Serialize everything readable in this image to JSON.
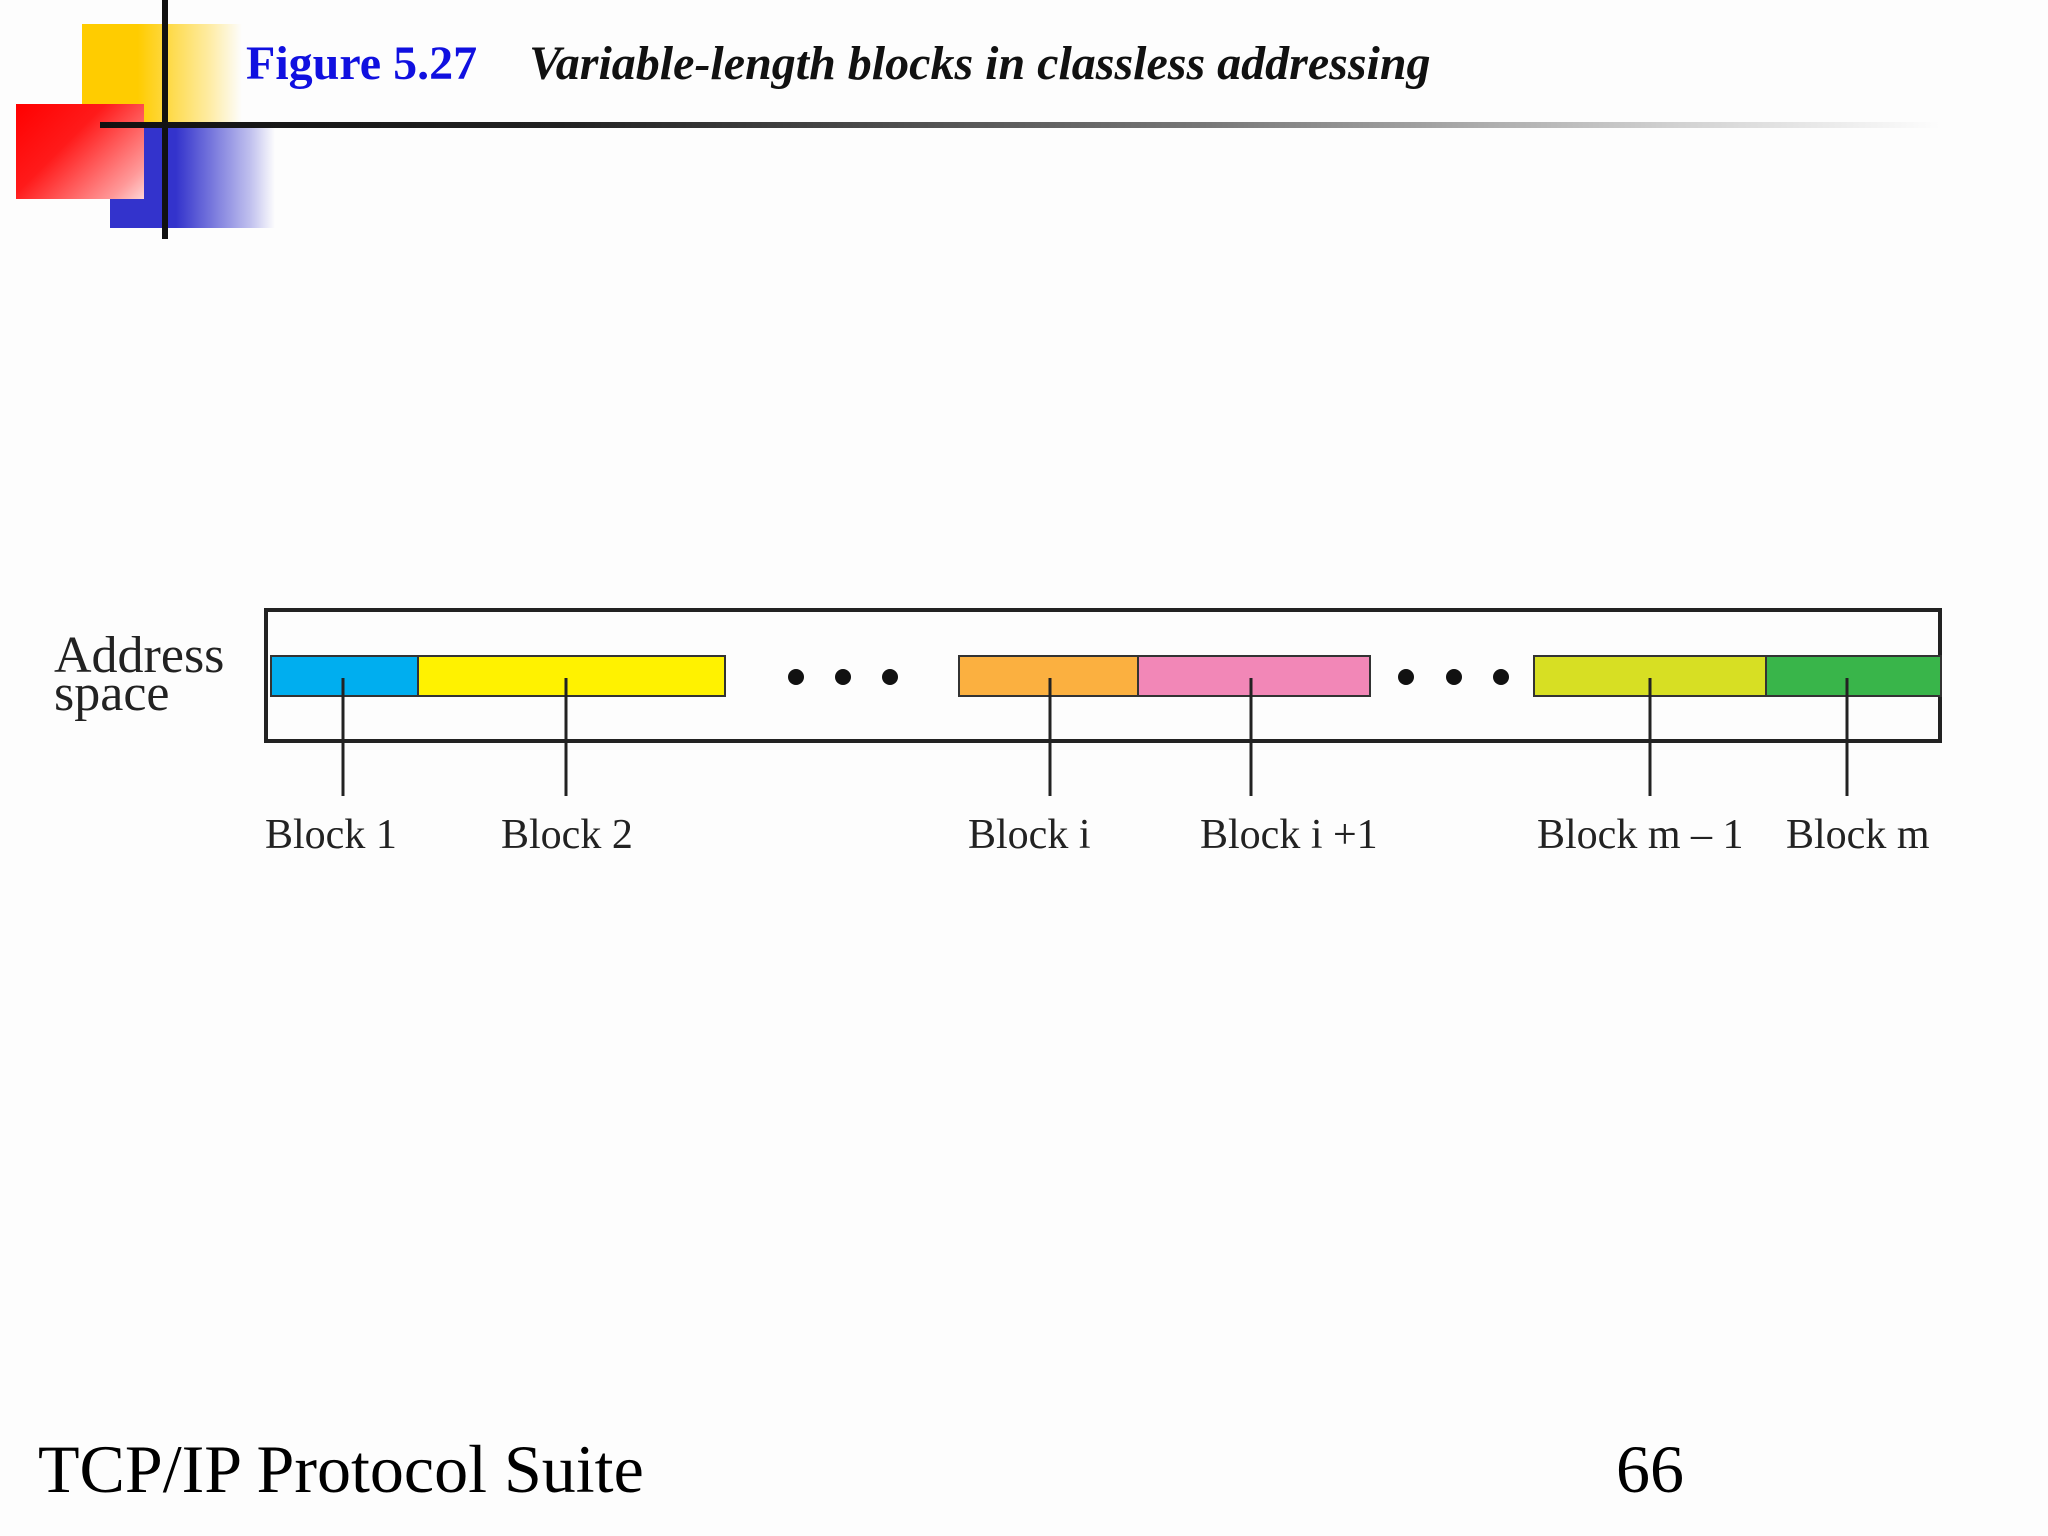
{
  "title": {
    "figure_number": "Figure 5.27",
    "caption": "Variable-length blocks in classless addressing"
  },
  "diagram": {
    "address_label_line1": "Address",
    "address_label_line2": "space",
    "blocks": [
      {
        "label": "Block 1",
        "color": "#00aeef"
      },
      {
        "label": "Block 2",
        "color": "#fff200"
      },
      {
        "label": "Block i",
        "color": "#fbb040"
      },
      {
        "label": "Block i +1",
        "color": "#f287b7"
      },
      {
        "label": "Block m – 1",
        "color": "#d7df23"
      },
      {
        "label": "Block m",
        "color": "#39b54a"
      }
    ]
  },
  "footer": {
    "suite": "TCP/IP Protocol Suite",
    "page_number": "66"
  },
  "colors": {
    "figure_number": "#1010e0",
    "deco_yellow": "#ffcc00",
    "deco_red": "#ff0000",
    "deco_blue": "#3333cc"
  }
}
